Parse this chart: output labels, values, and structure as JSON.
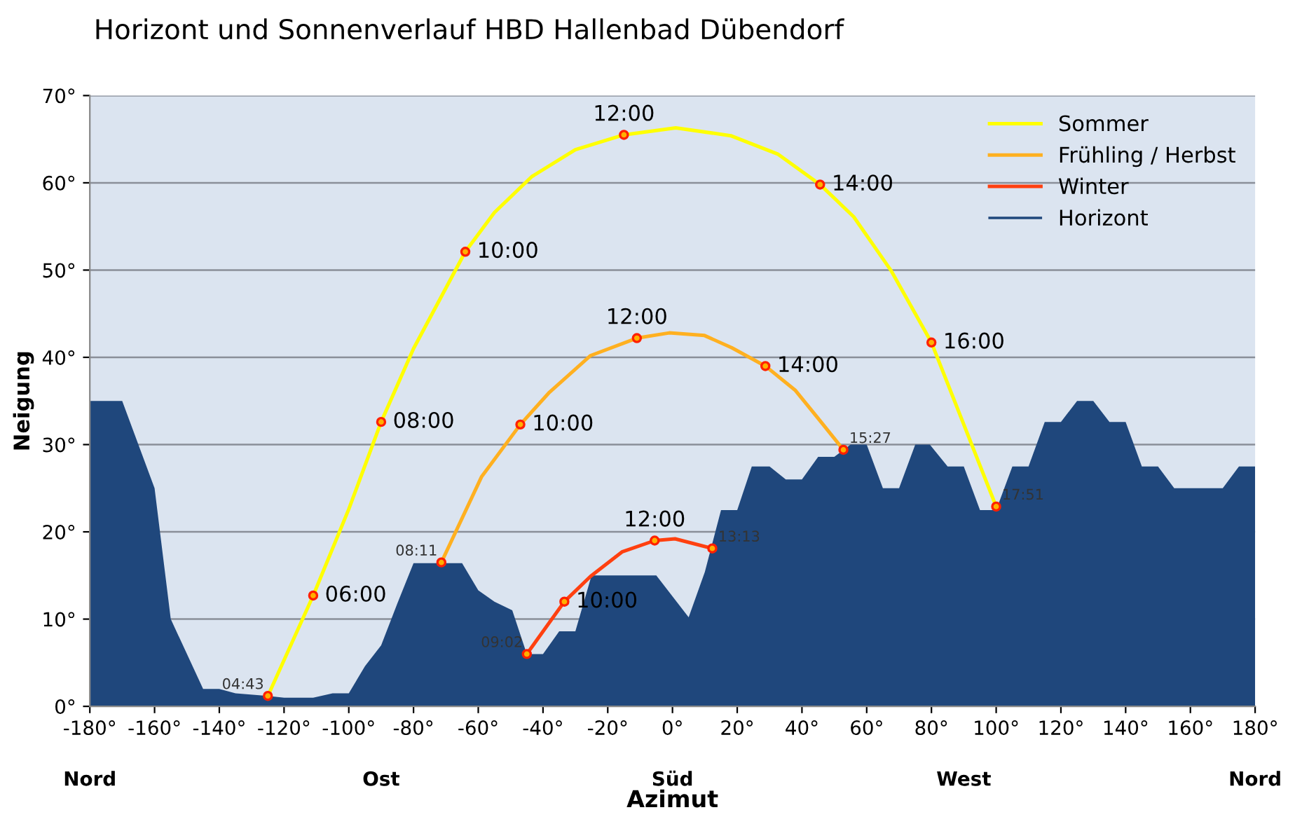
{
  "chart_data": {
    "type": "line",
    "title": "Horizont und Sonnenverlauf HBD Hallenbad Dübendorf",
    "xlabel": "Azimut",
    "ylabel": "Neigung",
    "xlim": [
      -180,
      180
    ],
    "xticks": [
      {
        "value": -180,
        "label": "-180°"
      },
      {
        "value": -160,
        "label": "-160°"
      },
      {
        "value": -140,
        "label": "-140°"
      },
      {
        "value": -120,
        "label": "-120°"
      },
      {
        "value": -100,
        "label": "-100°"
      },
      {
        "value": -80,
        "label": "-80°"
      },
      {
        "value": -60,
        "label": "-60°"
      },
      {
        "value": -40,
        "label": "-40°"
      },
      {
        "value": -20,
        "label": "-20°"
      },
      {
        "value": 0,
        "label": "0°"
      },
      {
        "value": 20,
        "label": "20°"
      },
      {
        "value": 40,
        "label": "40°"
      },
      {
        "value": 60,
        "label": "60°"
      },
      {
        "value": 80,
        "label": "80°"
      },
      {
        "value": 100,
        "label": "100°"
      },
      {
        "value": 120,
        "label": "120°"
      },
      {
        "value": 140,
        "label": "140°"
      },
      {
        "value": 160,
        "label": "160°"
      },
      {
        "value": 180,
        "label": "180°"
      }
    ],
    "ylim": [
      0,
      70
    ],
    "yticks": [
      {
        "value": 0,
        "label": "0°"
      },
      {
        "value": 10,
        "label": "10°"
      },
      {
        "value": 20,
        "label": "20°"
      },
      {
        "value": 30,
        "label": "30°"
      },
      {
        "value": 40,
        "label": "40°"
      },
      {
        "value": 50,
        "label": "50°"
      },
      {
        "value": 60,
        "label": "60°"
      },
      {
        "value": 70,
        "label": "70°"
      }
    ],
    "grid": "y",
    "legend": "top right",
    "line_style": "solid",
    "series": [
      {
        "name": "Sommer",
        "color": "#ffff00",
        "x": [
          -125,
          -111,
          -100,
          -90,
          -80,
          -64,
          -55,
          -43.5,
          -30,
          -15,
          1,
          18,
          32.5,
          45.6,
          56,
          67.6,
          80,
          100
        ],
        "values": [
          1.2,
          12.7,
          22.6,
          32.6,
          41,
          52.1,
          56.6,
          60.7,
          63.8,
          65.5,
          66.3,
          65.4,
          63.3,
          59.8,
          56.1,
          49.9,
          41.7,
          22.9
        ]
      },
      {
        "name": "Frühling / Herbst",
        "color": "#ffb020",
        "x": [
          -71.4,
          -59,
          -47,
          -38,
          -25.3,
          -11,
          -1,
          9.9,
          18.3,
          28.7,
          38,
          45,
          52.8
        ],
        "values": [
          16.5,
          26.3,
          32.3,
          36,
          40.2,
          42.2,
          42.8,
          42.5,
          41.1,
          39,
          36.2,
          33,
          29.4
        ]
      },
      {
        "name": "Winter",
        "color": "#ff4010",
        "x": [
          -45,
          -33.4,
          -25.3,
          -15.6,
          -5.5,
          0.8,
          12.3
        ],
        "values": [
          6,
          12,
          14.9,
          17.7,
          19,
          19.2,
          18.1
        ]
      },
      {
        "type": "scatter",
        "color": "#ff2000",
        "marker": "circle",
        "x": [
          -125,
          -111,
          -90,
          -64,
          -15,
          45.6,
          80,
          100,
          -71.4,
          -47,
          -11,
          28.7,
          52.8,
          -45,
          -33.4,
          -5.5,
          12.3
        ],
        "values": [
          1.2,
          12.7,
          32.6,
          52.1,
          65.5,
          59.8,
          41.7,
          22.9,
          16.5,
          32.3,
          42.2,
          39,
          29.4,
          6,
          12,
          19,
          18.1
        ]
      },
      {
        "name": "Horizont",
        "type": "area",
        "color": "#1f477c",
        "x": [
          -180,
          -170,
          -160,
          -155,
          -145,
          -140,
          -135,
          -125,
          -120,
          -111,
          -105,
          -100,
          -95,
          -90,
          -85,
          -80,
          -65,
          -60,
          -55,
          -49.5,
          -45,
          -40,
          -35,
          -30,
          -25,
          -5,
          5,
          10,
          15,
          20,
          24.5,
          30,
          35,
          40,
          45,
          50,
          55,
          60,
          65,
          70,
          75,
          79.5,
          85,
          90,
          95,
          100,
          105,
          110,
          115,
          120,
          125,
          130,
          135,
          140,
          145,
          150,
          155,
          170,
          175,
          180
        ],
        "values": [
          35,
          35,
          25,
          10,
          2,
          2,
          1.5,
          1.2,
          1,
          1,
          1.5,
          1.5,
          4.6,
          7,
          11.8,
          16.4,
          16.4,
          13.3,
          12,
          11,
          6,
          6,
          8.6,
          8.6,
          15,
          15,
          10.2,
          15.4,
          22.5,
          22.5,
          27.5,
          27.5,
          26,
          26,
          28.6,
          28.6,
          30,
          30,
          25,
          25,
          30,
          30,
          27.5,
          27.5,
          22.5,
          22.5,
          27.5,
          27.5,
          32.6,
          32.6,
          35,
          35,
          32.6,
          32.6,
          27.5,
          27.5,
          25,
          25,
          27.5,
          27.5
        ]
      }
    ],
    "annotations": [
      {
        "text": "04:43",
        "x": -125,
        "y": 1.2
      },
      {
        "text": "06:00",
        "x": -111,
        "y": 12.7
      },
      {
        "text": "08:00",
        "x": -90,
        "y": 32.6
      },
      {
        "text": "10:00",
        "x": -64,
        "y": 52.1
      },
      {
        "text": "12:00",
        "x": -15,
        "y": 65.5
      },
      {
        "text": "14:00",
        "x": 45.6,
        "y": 59.8
      },
      {
        "text": "16:00",
        "x": 80,
        "y": 41.7
      },
      {
        "text": "17:51",
        "x": 100,
        "y": 22.9
      },
      {
        "text": "08:11",
        "x": -71.4,
        "y": 16.5
      },
      {
        "text": "10:00",
        "x": -47,
        "y": 32.3
      },
      {
        "text": "12:00",
        "x": -11,
        "y": 42.2
      },
      {
        "text": "14:00",
        "x": 28.7,
        "y": 39
      },
      {
        "text": "15:27",
        "x": 52.8,
        "y": 29.4
      },
      {
        "text": "09:02",
        "x": -45,
        "y": 6
      },
      {
        "text": "10:00",
        "x": -33.4,
        "y": 12
      },
      {
        "text": "12:00",
        "x": -5.5,
        "y": 19
      },
      {
        "text": "13:13",
        "x": 12.3,
        "y": 18.1
      },
      "Nord",
      "Ost",
      "Süd",
      "West",
      "Nord"
    ]
  }
}
